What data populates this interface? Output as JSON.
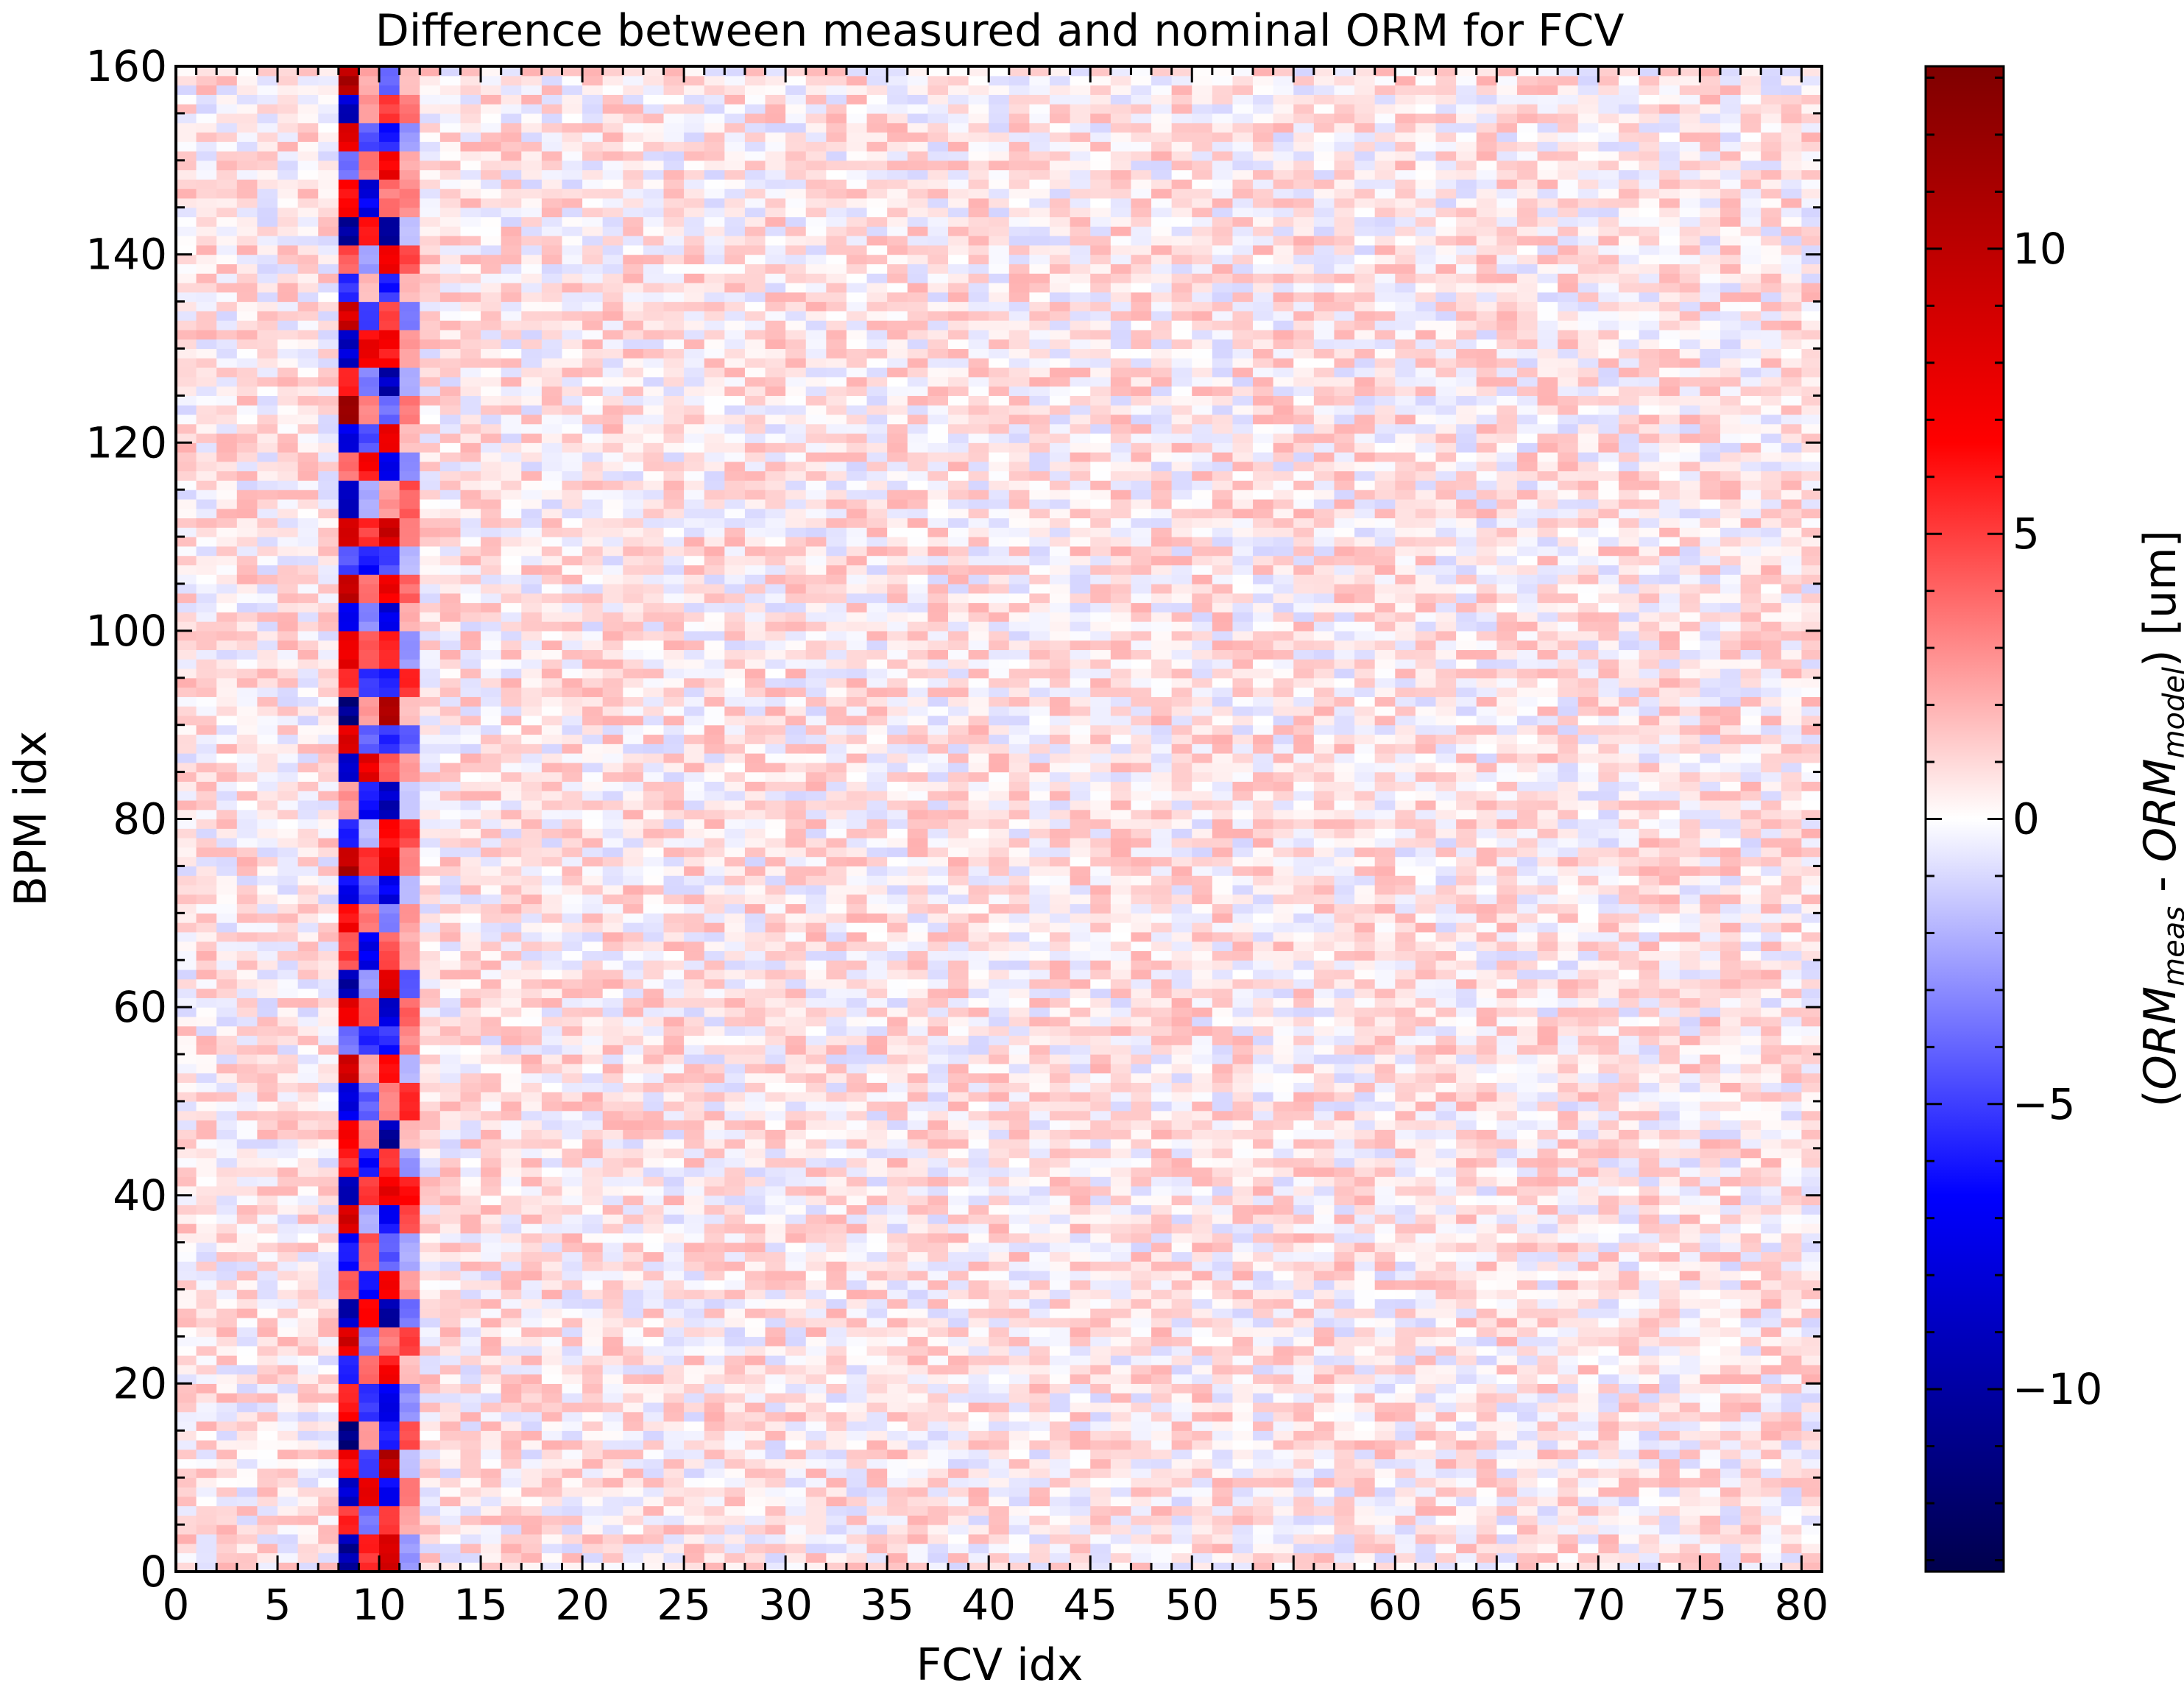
{
  "chart_data": {
    "type": "heatmap",
    "title": "Difference between measured and nominal ORM for FCV",
    "xlabel": "FCV idx",
    "ylabel": "BPM idx",
    "colorbar_label": "(ORM_meas - ORM_model) [um]",
    "colorbar_label_parts": {
      "open": "(",
      "orm": "ORM",
      "meas_sub": "meas",
      "minus": " - ",
      "model_sub": "model",
      "close": ") [um]"
    },
    "colormap": "seismic",
    "colormap_stops": [
      "#00004c",
      "#0000ff",
      "#ffffff",
      "#ff0000",
      "#7f0000"
    ],
    "xlim": [
      0,
      81
    ],
    "ylim": [
      0,
      160
    ],
    "clim": [
      -13.2,
      13.2
    ],
    "n_cols": 81,
    "n_rows": 160,
    "x_ticks": [
      0,
      5,
      10,
      15,
      20,
      25,
      30,
      35,
      40,
      45,
      50,
      55,
      60,
      65,
      70,
      75,
      80
    ],
    "x_tick_labels": [
      "0",
      "5",
      "10",
      "15",
      "20",
      "25",
      "30",
      "35",
      "40",
      "45",
      "50",
      "55",
      "60",
      "65",
      "70",
      "75",
      "80"
    ],
    "y_ticks": [
      0,
      20,
      40,
      60,
      80,
      100,
      120,
      140,
      160
    ],
    "y_tick_labels": [
      "0",
      "20",
      "40",
      "60",
      "80",
      "100",
      "120",
      "140",
      "160"
    ],
    "colorbar_ticks": [
      -10,
      -5,
      0,
      5,
      10
    ],
    "colorbar_tick_labels": [
      "−10",
      "−5",
      "0",
      "5",
      "10"
    ],
    "grid": false,
    "strong_columns": {
      "8": [
        -11.5,
        6.0,
        -9.5,
        8.0,
        -12.0,
        7.0,
        -6.0,
        9.5,
        -10.0,
        4.5,
        -7.0,
        10.5,
        -11.0,
        6.5,
        8.0,
        -9.0,
        11.0,
        -4.0,
        9.0,
        -10.5,
        5.5,
        7.5,
        -8.0,
        12.0,
        -6.5,
        3.0,
        -9.0,
        10.0,
        -12.5,
        6.0,
        8.5,
        -7.5,
        11.0,
        -5.5,
        9.5,
        -10.0,
        4.0,
        -8.5,
        12.5,
        7.0,
        -9.5,
        10.5,
        -6.0,
        5.0,
        -11.5,
        8.0,
        -4.5,
        9.0,
        -10.0,
        11.5
      ],
      "9": [
        6.5,
        -4.0,
        8.0,
        -5.5,
        3.0,
        -6.0,
        4.5,
        -3.5,
        7.0,
        -8.0,
        5.0,
        -2.5,
        6.0,
        -7.0,
        3.5,
        -4.5,
        2.5,
        -6.5,
        5.5,
        -3.0,
        -8.0,
        4.0,
        -5.0,
        6.5,
        -2.0,
        -7.5,
        8.5,
        -4.5,
        3.0,
        -6.0,
        5.5,
        -3.5,
        4.5,
        -7.0,
        6.0,
        -2.5,
        7.5,
        -5.5,
        3.5,
        -4.0,
        8.0,
        -6.5,
        2.0,
        -3.0,
        6.5,
        -8.5,
        4.0,
        -5.0,
        3.0,
        2.5
      ],
      "10": [
        10.0,
        5.5,
        -8.0,
        11.5,
        -6.0,
        -9.0,
        7.5,
        4.0,
        -10.5,
        8.5,
        -5.0,
        -7.5,
        9.0,
        6.0,
        -11.0,
        3.5,
        8.0,
        -6.5,
        -9.5,
        10.5,
        5.0,
        -4.0,
        -8.5,
        9.5,
        7.0,
        -10.0,
        4.5,
        -6.0,
        11.0,
        -7.0,
        6.5,
        -9.0,
        8.0,
        -5.5,
        10.0,
        3.0,
        -8.0,
        9.5,
        -4.5,
        -10.5,
        7.5,
        5.5,
        -6.5,
        9.0,
        -11.5,
        4.0,
        8.5,
        -7.0,
        6.0,
        -5.0
      ],
      "11": [
        -3.0,
        2.5,
        4.0,
        -2.0,
        5.5,
        -3.5,
        2.0,
        6.0,
        -4.0,
        3.0,
        -2.5,
        5.0,
        7.0,
        -3.0,
        2.0,
        6.5,
        -2.0,
        3.5,
        4.5,
        -5.0,
        2.5,
        3.0,
        -2.0,
        4.0,
        5.5,
        -1.5,
        3.0,
        -4.5,
        2.0,
        6.0,
        -3.0,
        2.5,
        4.5,
        -2.0,
        3.5,
        5.0,
        -3.5,
        2.0,
        4.0,
        -2.5,
        3.0,
        -4.0,
        2.0,
        5.5,
        -2.0,
        3.5,
        2.5,
        -3.0,
        4.0,
        2.0
      ]
    },
    "background_noise_amplitude": 1.6
  }
}
